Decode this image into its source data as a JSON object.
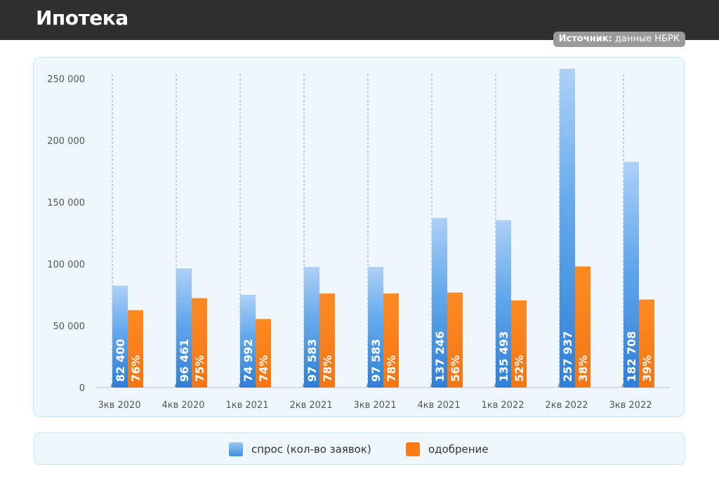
{
  "header": {
    "title": "Ипотека",
    "source_label": "Источник:",
    "source_value": "данные НБРК"
  },
  "colors": {
    "demand": "#3d8fe0",
    "demand_light": "#aed0f7",
    "approval": "#f57c16",
    "approval_light": "#ffb36b",
    "grid": "#cfd8dc",
    "axis_text": "#555555"
  },
  "chart_data": {
    "type": "bar",
    "categories": [
      "3кв 2020",
      "4кв 2020",
      "1кв 2021",
      "2кв 2021",
      "3кв 2021",
      "4кв 2021",
      "1кв 2022",
      "2кв 2022",
      "3кв 2022"
    ],
    "series": [
      {
        "name": "спрос (кол-во заявок)",
        "values": [
          82400,
          96461,
          74992,
          97583,
          97583,
          137246,
          135493,
          257937,
          182708
        ],
        "labels": [
          "82 400",
          "96 461",
          "74 992",
          "97 583",
          "97 583",
          "137 246",
          "135 493",
          "257 937",
          "182 708"
        ]
      },
      {
        "name": "одобрение",
        "values": [
          62624,
          72346,
          55494,
          76115,
          76115,
          76858,
          70456,
          98016,
          71256
        ],
        "labels": [
          "76%",
          "75%",
          "74%",
          "78%",
          "78%",
          "56%",
          "52%",
          "38%",
          "39%"
        ]
      }
    ],
    "yticks": [
      "0",
      "50 000",
      "100 000",
      "150 000",
      "200 000",
      "250 000"
    ],
    "ylim": [
      0,
      250000
    ],
    "grid": "vertical dashed lines at categories",
    "legend_position": "bottom"
  }
}
